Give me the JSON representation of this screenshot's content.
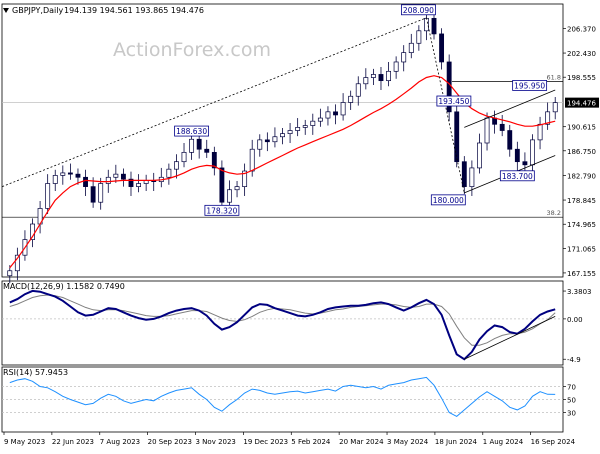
{
  "header": {
    "symbol": "GBPJPY,Daily",
    "ohlc": "194.139 194.561 193.865 194.476"
  },
  "watermark": "ActionForex.com",
  "colors": {
    "candle": "#00003c",
    "ma": "#ff0000",
    "macd": "#000080",
    "signal": "#808080",
    "rsi": "#1e90ff",
    "label_border": "#00008b",
    "trend": "#000000",
    "price_tag_bg": "#000000",
    "grid": "#c0c0c0"
  },
  "chart_data": [
    {
      "type": "candlestick",
      "name": "price",
      "x_labels": [
        "9 May 2023",
        "22 Jun 2023",
        "7 Aug 2023",
        "20 Sep 2023",
        "3 Nov 2023",
        "19 Dec 2023",
        "5 Feb 2024",
        "20 Mar 2024",
        "3 May 2024",
        "18 Jun 2024",
        "1 Aug 2024",
        "16 Sep 2024"
      ],
      "y_ticks": [
        206.37,
        202.43,
        198.555,
        194.476,
        190.615,
        186.75,
        182.79,
        178.845,
        174.965,
        171.065,
        167.155
      ],
      "ylim": [
        166.5,
        210.3
      ],
      "current_price": 194.476,
      "closes": [
        167.5,
        170.0,
        172.5,
        175.0,
        177.5,
        181.5,
        182.8,
        183.2,
        183.0,
        182.5,
        181.0,
        178.5,
        181.5,
        182.5,
        183.0,
        182.2,
        181.0,
        181.5,
        182.0,
        181.8,
        182.5,
        183.8,
        185.0,
        186.5,
        188.6,
        187.0,
        186.5,
        184.0,
        178.5,
        180.5,
        181.0,
        183.5,
        187.0,
        188.5,
        188.2,
        189.0,
        189.5,
        190.0,
        190.5,
        190.8,
        191.5,
        192.0,
        193.0,
        192.5,
        194.5,
        195.5,
        197.5,
        198.5,
        199.0,
        198.0,
        199.5,
        201.0,
        202.5,
        204.0,
        206.0,
        208.0,
        205.5,
        201.0,
        193.0,
        185.0,
        181.0,
        184.0,
        188.0,
        192.0,
        191.0,
        190.0,
        187.0,
        185.0,
        184.5,
        188.5,
        191.0,
        193.0,
        194.476
      ],
      "ma_values": [
        168.0,
        169.5,
        171.2,
        173.0,
        175.0,
        177.0,
        178.8,
        180.0,
        181.0,
        181.6,
        182.0,
        181.9,
        181.8,
        181.8,
        181.9,
        182.0,
        182.0,
        182.0,
        182.0,
        182.0,
        182.1,
        182.3,
        182.7,
        183.2,
        183.8,
        184.2,
        184.4,
        184.3,
        183.6,
        183.2,
        183.0,
        183.1,
        183.6,
        184.2,
        184.8,
        185.4,
        186.0,
        186.6,
        187.2,
        187.7,
        188.2,
        188.7,
        189.2,
        189.7,
        190.2,
        190.8,
        191.5,
        192.2,
        192.9,
        193.5,
        194.2,
        195.0,
        195.9,
        196.8,
        197.8,
        198.5,
        198.8,
        198.5,
        197.5,
        196.0,
        194.5,
        193.5,
        192.8,
        192.3,
        192.0,
        191.7,
        191.4,
        191.0,
        190.7,
        190.7,
        190.9,
        191.2,
        191.5
      ],
      "annotations": [
        {
          "label": "208.090",
          "value": 208.09
        },
        {
          "label": "188.630",
          "value": 188.63
        },
        {
          "label": "178.320",
          "value": 178.32
        },
        {
          "label": "195.950",
          "value": 195.95
        },
        {
          "label": "193.450",
          "value": 193.45
        },
        {
          "label": "183.700",
          "value": 183.7
        },
        {
          "label": "180.000",
          "value": 180.0
        }
      ],
      "fib_levels": [
        {
          "label": "61.8",
          "value": 197.85
        },
        {
          "label": "38.2",
          "value": 176.1
        }
      ]
    },
    {
      "type": "line",
      "name": "macd",
      "label": "MACD(12,26,9) 1.1582 0.7490",
      "y_ticks": [
        "3.3803",
        "0.00",
        "-4.9"
      ],
      "ylim": [
        -5.6,
        4.6
      ],
      "zero": 0,
      "macd_values": [
        2.0,
        2.4,
        3.0,
        3.4,
        3.3,
        3.0,
        2.7,
        2.2,
        1.5,
        0.8,
        0.4,
        0.5,
        0.9,
        1.3,
        1.2,
        0.8,
        0.4,
        0.1,
        -0.1,
        0.0,
        0.3,
        0.7,
        1.0,
        1.2,
        1.3,
        1.0,
        0.4,
        -0.6,
        -1.3,
        -1.0,
        -0.4,
        0.5,
        1.4,
        1.8,
        1.7,
        1.3,
        1.0,
        0.7,
        0.4,
        0.3,
        0.5,
        0.8,
        1.2,
        1.4,
        1.5,
        1.6,
        1.6,
        1.7,
        1.9,
        2.0,
        1.8,
        1.4,
        1.0,
        1.4,
        1.9,
        2.3,
        1.8,
        0.5,
        -2.0,
        -4.3,
        -4.9,
        -4.0,
        -2.5,
        -1.5,
        -0.8,
        -1.0,
        -1.6,
        -1.8,
        -1.2,
        -0.3,
        0.5,
        0.9,
        1.16
      ],
      "signal_values": [
        1.5,
        1.8,
        2.2,
        2.6,
        2.8,
        2.9,
        2.8,
        2.6,
        2.2,
        1.8,
        1.4,
        1.1,
        1.0,
        1.1,
        1.1,
        1.0,
        0.8,
        0.6,
        0.4,
        0.3,
        0.3,
        0.4,
        0.6,
        0.8,
        1.0,
        1.0,
        0.9,
        0.5,
        0.1,
        -0.2,
        -0.3,
        -0.1,
        0.3,
        0.8,
        1.1,
        1.3,
        1.2,
        1.1,
        0.9,
        0.7,
        0.6,
        0.7,
        0.9,
        1.1,
        1.2,
        1.4,
        1.5,
        1.6,
        1.7,
        1.8,
        1.8,
        1.7,
        1.5,
        1.4,
        1.5,
        1.8,
        1.8,
        1.5,
        0.6,
        -0.9,
        -2.3,
        -3.2,
        -3.2,
        -2.9,
        -2.4,
        -2.0,
        -1.8,
        -1.8,
        -1.6,
        -1.2,
        -0.6,
        -0.1,
        0.75
      ]
    },
    {
      "type": "line",
      "name": "rsi",
      "label": "RSI(14) 57.9453",
      "y_ticks": [
        "70",
        "50",
        "30"
      ],
      "ylim": [
        0,
        100
      ],
      "rsi_values": [
        76,
        80,
        82,
        78,
        70,
        68,
        62,
        55,
        50,
        46,
        42,
        44,
        52,
        58,
        55,
        48,
        44,
        47,
        50,
        48,
        55,
        60,
        64,
        66,
        68,
        58,
        50,
        38,
        32,
        42,
        50,
        60,
        66,
        64,
        60,
        58,
        60,
        62,
        63,
        60,
        62,
        64,
        66,
        63,
        70,
        72,
        70,
        68,
        70,
        66,
        72,
        74,
        76,
        80,
        82,
        84,
        72,
        52,
        30,
        24,
        34,
        44,
        54,
        62,
        55,
        48,
        38,
        34,
        40,
        55,
        62,
        58,
        57.9
      ]
    }
  ]
}
